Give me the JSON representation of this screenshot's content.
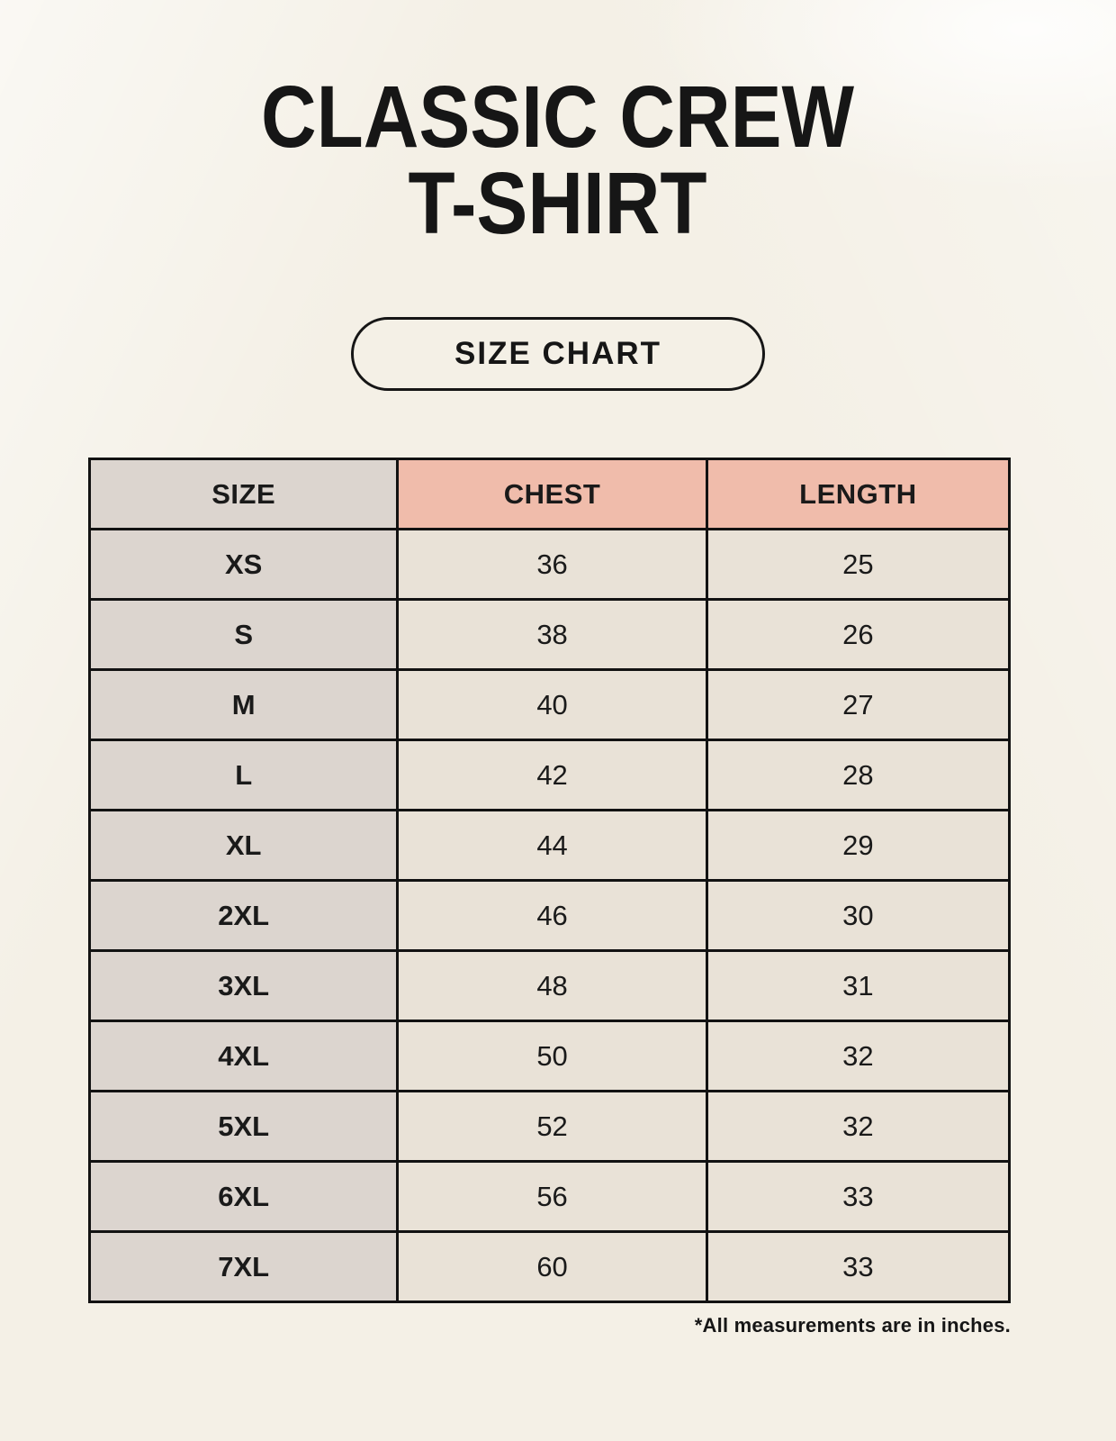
{
  "header": {
    "title_line1": "CLASSIC CREW",
    "title_line2": "T-SHIRT",
    "button_label": "SIZE CHART"
  },
  "colors": {
    "background": "#f4f0e6",
    "accent_header": "#f0bcab",
    "size_column": "#dcd5cf",
    "data_cell": "#e9e2d7",
    "border": "#121212",
    "text": "#161616"
  },
  "chart_data": {
    "type": "table",
    "columns": [
      "SIZE",
      "CHEST",
      "LENGTH"
    ],
    "rows": [
      [
        "XS",
        "36",
        "25"
      ],
      [
        "S",
        "38",
        "26"
      ],
      [
        "M",
        "40",
        "27"
      ],
      [
        "L",
        "42",
        "28"
      ],
      [
        "XL",
        "44",
        "29"
      ],
      [
        "2XL",
        "46",
        "30"
      ],
      [
        "3XL",
        "48",
        "31"
      ],
      [
        "4XL",
        "50",
        "32"
      ],
      [
        "5XL",
        "52",
        "32"
      ],
      [
        "6XL",
        "56",
        "33"
      ],
      [
        "7XL",
        "60",
        "33"
      ]
    ],
    "units_note": "*All measurements are in inches."
  },
  "footnote": "*All measurements are in inches."
}
